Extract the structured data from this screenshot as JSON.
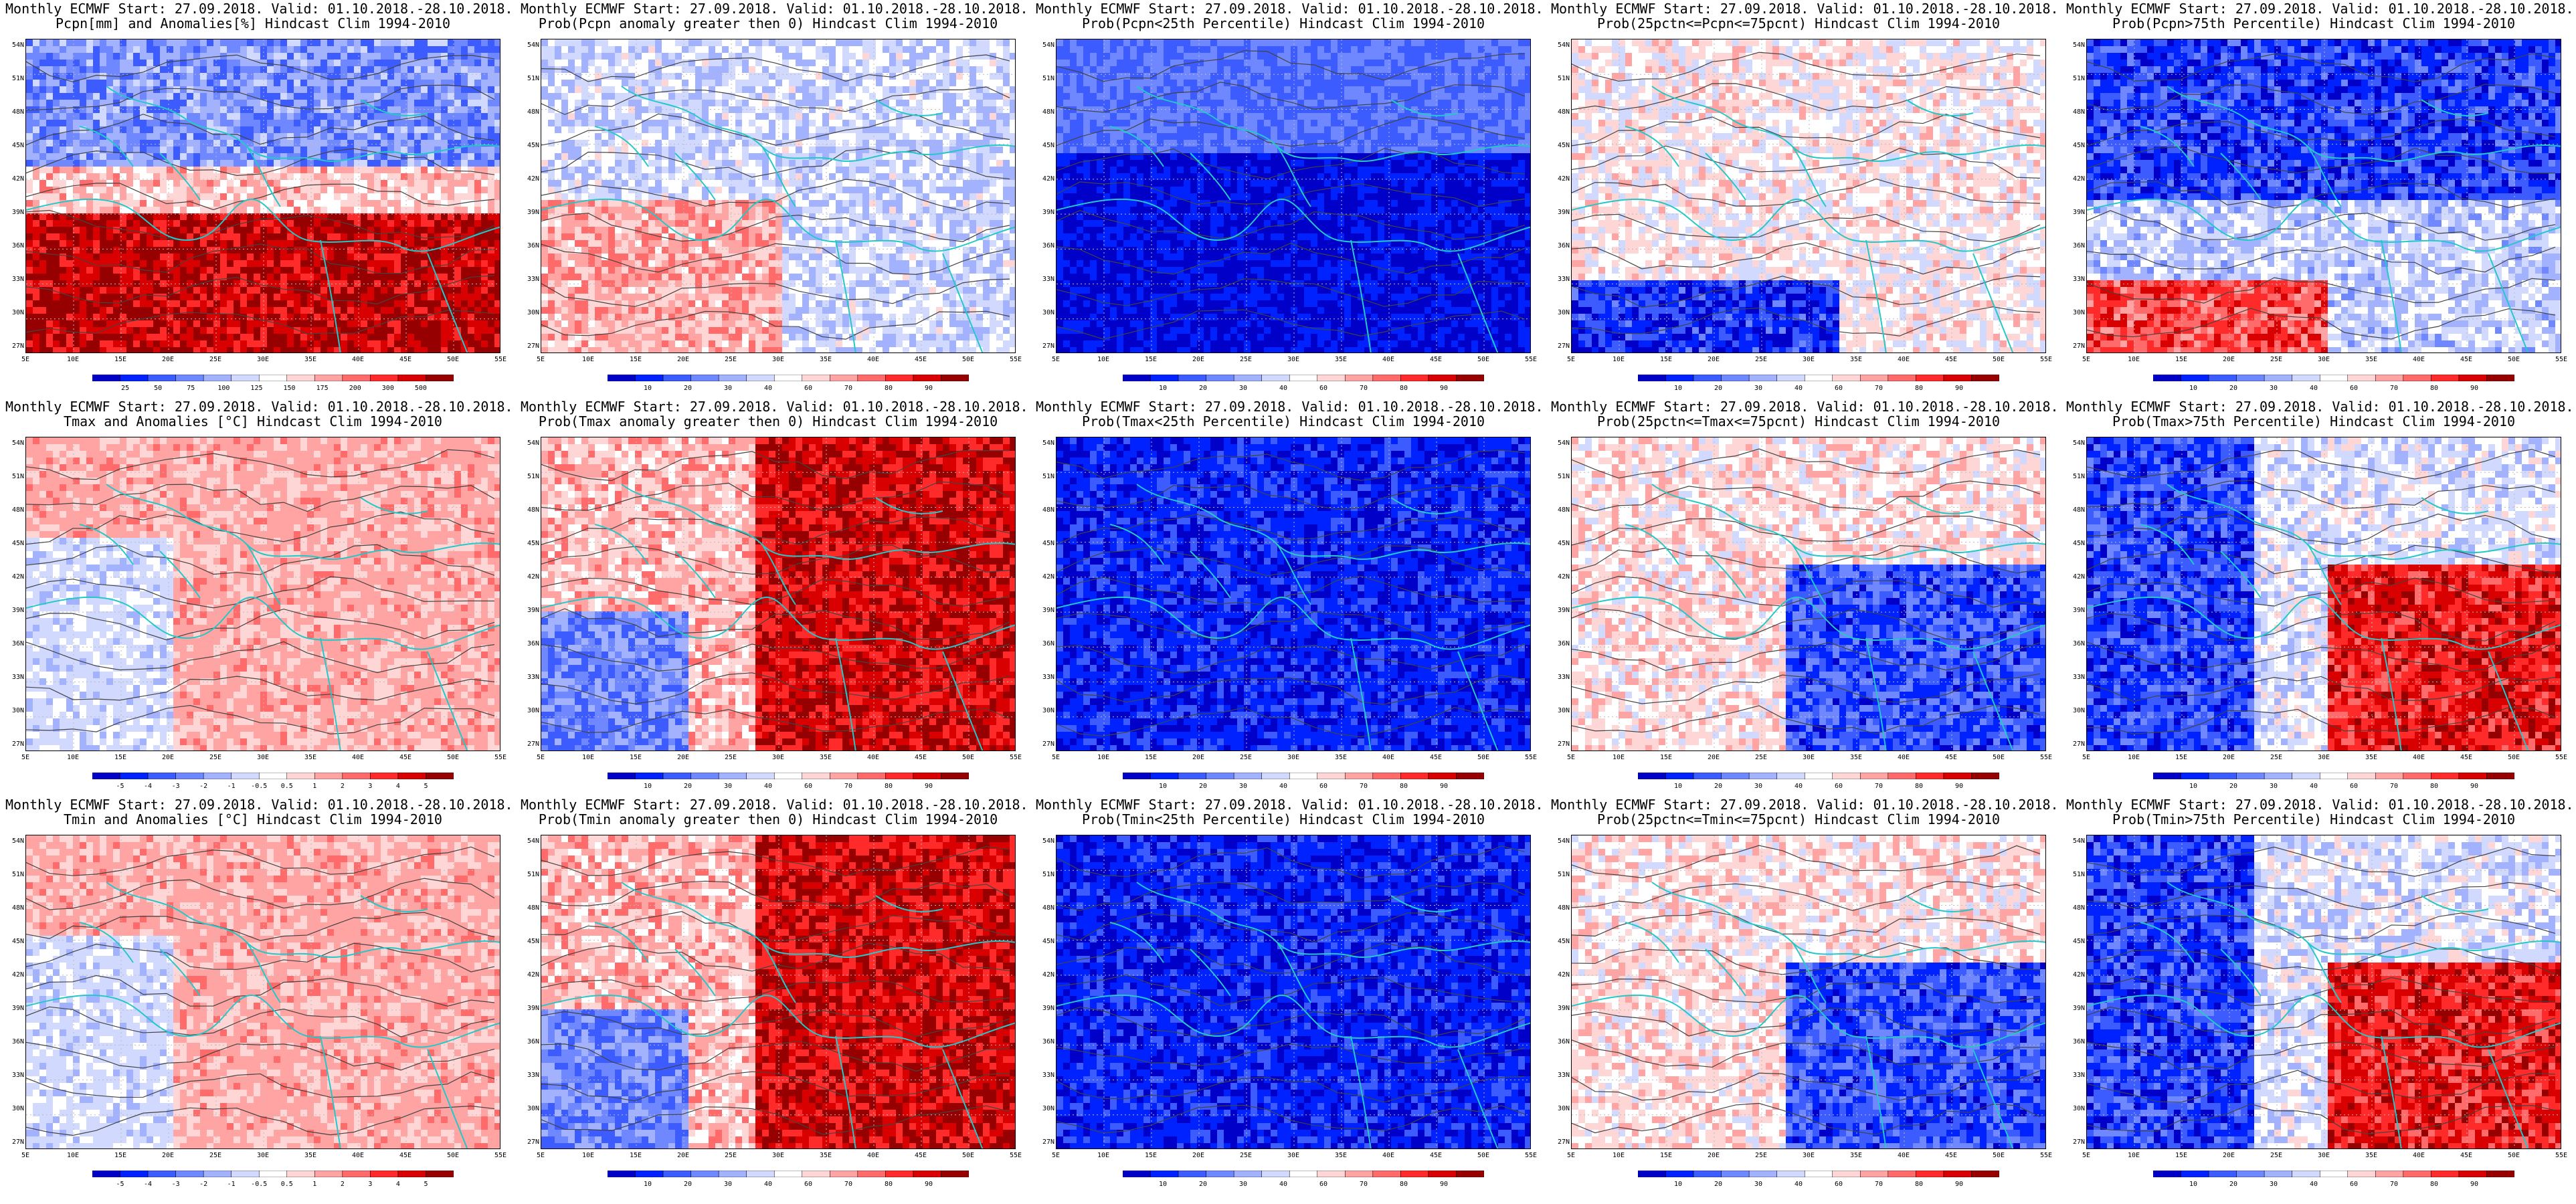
{
  "lat_labels": [
    "54N",
    "51N",
    "48N",
    "45N",
    "42N",
    "39N",
    "36N",
    "33N",
    "30N",
    "27N"
  ],
  "lon_labels": [
    "5E",
    "10E",
    "15E",
    "20E",
    "25E",
    "30E",
    "35E",
    "40E",
    "45E",
    "50E",
    "55E"
  ],
  "colors": {
    "coast": "#24c8c8",
    "contour": "#444444",
    "blue_scale": [
      "#0000c8",
      "#0022ff",
      "#3d5cff",
      "#6f87ff",
      "#a3b2ff",
      "#d2d9ff",
      "#ffffff"
    ],
    "red_scale": [
      "#ffffff",
      "#ffd6d6",
      "#ffa3a3",
      "#ff6b6b",
      "#ff2a2a",
      "#d80000",
      "#960000"
    ]
  },
  "panels": [
    {
      "title_line1": "Monthly ECMWF Start: 27.09.2018. Valid: 01.10.2018.-28.10.2018.",
      "title_line2": "Pcpn[mm] and Anomalies[%] Hindcast Clim 1994-2010",
      "scale": "anom_pcpn",
      "colorbar_labels": [
        "25",
        "50",
        "75",
        "100",
        "125",
        "150",
        "175",
        "200",
        "300",
        "500"
      ],
      "blue_level": 0.55,
      "red_level": 0.5,
      "pattern": "south_red"
    },
    {
      "title_line1": "Monthly ECMWF Start: 27.09.2018. Valid: 01.10.2018.-28.10.2018.",
      "title_line2": "Prob(Pcpn anomaly greater then 0) Hindcast Clim 1994-2010",
      "scale": "prob",
      "colorbar_labels": [
        "10",
        "20",
        "30",
        "40",
        "60",
        "70",
        "80",
        "90"
      ],
      "blue_level": 0.35,
      "red_level": 0.45,
      "pattern": "mixed"
    },
    {
      "title_line1": "Monthly ECMWF Start: 27.09.2018. Valid: 01.10.2018.-28.10.2018.",
      "title_line2": "Prob(Pcpn<25th Percentile) Hindcast Clim 1994-2010",
      "scale": "prob",
      "colorbar_labels": [
        "10",
        "20",
        "30",
        "40",
        "60",
        "70",
        "80",
        "90"
      ],
      "blue_level": 0.95,
      "red_level": 0.1,
      "pattern": "blue_south"
    },
    {
      "title_line1": "Monthly ECMWF Start: 27.09.2018. Valid: 01.10.2018.-28.10.2018.",
      "title_line2": "Prob(25pctn<=Pcpn<=75pcnt) Hindcast Clim 1994-2010",
      "scale": "prob",
      "colorbar_labels": [
        "10",
        "20",
        "30",
        "40",
        "60",
        "70",
        "80",
        "90"
      ],
      "blue_level": 0.45,
      "red_level": 0.3,
      "pattern": "mixed_sw_blue"
    },
    {
      "title_line1": "Monthly ECMWF Start: 27.09.2018. Valid: 01.10.2018.-28.10.2018.",
      "title_line2": "Prob(Pcpn>75th Percentile) Hindcast Clim 1994-2010",
      "scale": "prob",
      "colorbar_labels": [
        "10",
        "20",
        "30",
        "40",
        "60",
        "70",
        "80",
        "90"
      ],
      "blue_level": 0.75,
      "red_level": 0.6,
      "pattern": "blue_north_red_sw"
    },
    {
      "title_line1": "Monthly ECMWF Start: 27.09.2018. Valid: 01.10.2018.-28.10.2018.",
      "title_line2": "Tmax and Anomalies [°C] Hindcast Clim 1994-2010",
      "scale": "anom_temp",
      "colorbar_labels": [
        "-5",
        "-4",
        "-3",
        "-2",
        "-1",
        "-0.5",
        "0.5",
        "1",
        "2",
        "3",
        "4",
        "5"
      ],
      "blue_level": 0.3,
      "red_level": 0.45,
      "pattern": "light_red"
    },
    {
      "title_line1": "Monthly ECMWF Start: 27.09.2018. Valid: 01.10.2018.-28.10.2018.",
      "title_line2": "Prob(Tmax anomaly greater then 0) Hindcast Clim 1994-2010",
      "scale": "prob",
      "colorbar_labels": [
        "10",
        "20",
        "30",
        "40",
        "60",
        "70",
        "80",
        "90"
      ],
      "blue_level": 0.45,
      "red_level": 0.85,
      "pattern": "red_east"
    },
    {
      "title_line1": "Monthly ECMWF Start: 27.09.2018. Valid: 01.10.2018.-28.10.2018.",
      "title_line2": "Prob(Tmax<25th Percentile) Hindcast Clim 1994-2010",
      "scale": "prob",
      "colorbar_labels": [
        "10",
        "20",
        "30",
        "40",
        "60",
        "70",
        "80",
        "90"
      ],
      "blue_level": 0.95,
      "red_level": 0.15,
      "pattern": "blue_all"
    },
    {
      "title_line1": "Monthly ECMWF Start: 27.09.2018. Valid: 01.10.2018.-28.10.2018.",
      "title_line2": "Prob(25pctn<=Tmax<=75pcnt) Hindcast Clim 1994-2010",
      "scale": "prob",
      "colorbar_labels": [
        "10",
        "20",
        "30",
        "40",
        "60",
        "70",
        "80",
        "90"
      ],
      "blue_level": 0.55,
      "red_level": 0.3,
      "pattern": "mixed_se_blue"
    },
    {
      "title_line1": "Monthly ECMWF Start: 27.09.2018. Valid: 01.10.2018.-28.10.2018.",
      "title_line2": "Prob(Tmax>75th Percentile) Hindcast Clim 1994-2010",
      "scale": "prob",
      "colorbar_labels": [
        "10",
        "20",
        "30",
        "40",
        "60",
        "70",
        "80",
        "90"
      ],
      "blue_level": 0.8,
      "red_level": 0.55,
      "pattern": "blue_west_red_east"
    },
    {
      "title_line1": "Monthly ECMWF Start: 27.09.2018. Valid: 01.10.2018.-28.10.2018.",
      "title_line2": "Tmin and Anomalies [°C] Hindcast Clim 1994-2010",
      "scale": "anom_temp",
      "colorbar_labels": [
        "-5",
        "-4",
        "-3",
        "-2",
        "-1",
        "-0.5",
        "0.5",
        "1",
        "2",
        "3",
        "4",
        "5"
      ],
      "blue_level": 0.2,
      "red_level": 0.5,
      "pattern": "light_red"
    },
    {
      "title_line1": "Monthly ECMWF Start: 27.09.2018. Valid: 01.10.2018.-28.10.2018.",
      "title_line2": "Prob(Tmin anomaly greater then 0) Hindcast Clim 1994-2010",
      "scale": "prob",
      "colorbar_labels": [
        "10",
        "20",
        "30",
        "40",
        "60",
        "70",
        "80",
        "90"
      ],
      "blue_level": 0.5,
      "red_level": 0.95,
      "pattern": "red_east"
    },
    {
      "title_line1": "Monthly ECMWF Start: 27.09.2018. Valid: 01.10.2018.-28.10.2018.",
      "title_line2": "Prob(Tmin<25th Percentile) Hindcast Clim 1994-2010",
      "scale": "prob",
      "colorbar_labels": [
        "10",
        "20",
        "30",
        "40",
        "60",
        "70",
        "80",
        "90"
      ],
      "blue_level": 0.98,
      "red_level": 0.2,
      "pattern": "blue_all"
    },
    {
      "title_line1": "Monthly ECMWF Start: 27.09.2018. Valid: 01.10.2018.-28.10.2018.",
      "title_line2": "Prob(25pctn<=Tmin<=75pcnt) Hindcast Clim 1994-2010",
      "scale": "prob",
      "colorbar_labels": [
        "10",
        "20",
        "30",
        "40",
        "60",
        "70",
        "80",
        "90"
      ],
      "blue_level": 0.75,
      "red_level": 0.3,
      "pattern": "mixed_se_blue"
    },
    {
      "title_line1": "Monthly ECMWF Start: 27.09.2018. Valid: 01.10.2018.-28.10.2018.",
      "title_line2": "Prob(Tmin>75th Percentile) Hindcast Clim 1994-2010",
      "scale": "prob",
      "colorbar_labels": [
        "10",
        "20",
        "30",
        "40",
        "60",
        "70",
        "80",
        "90"
      ],
      "blue_level": 0.8,
      "red_level": 0.9,
      "pattern": "blue_west_red_east"
    }
  ]
}
